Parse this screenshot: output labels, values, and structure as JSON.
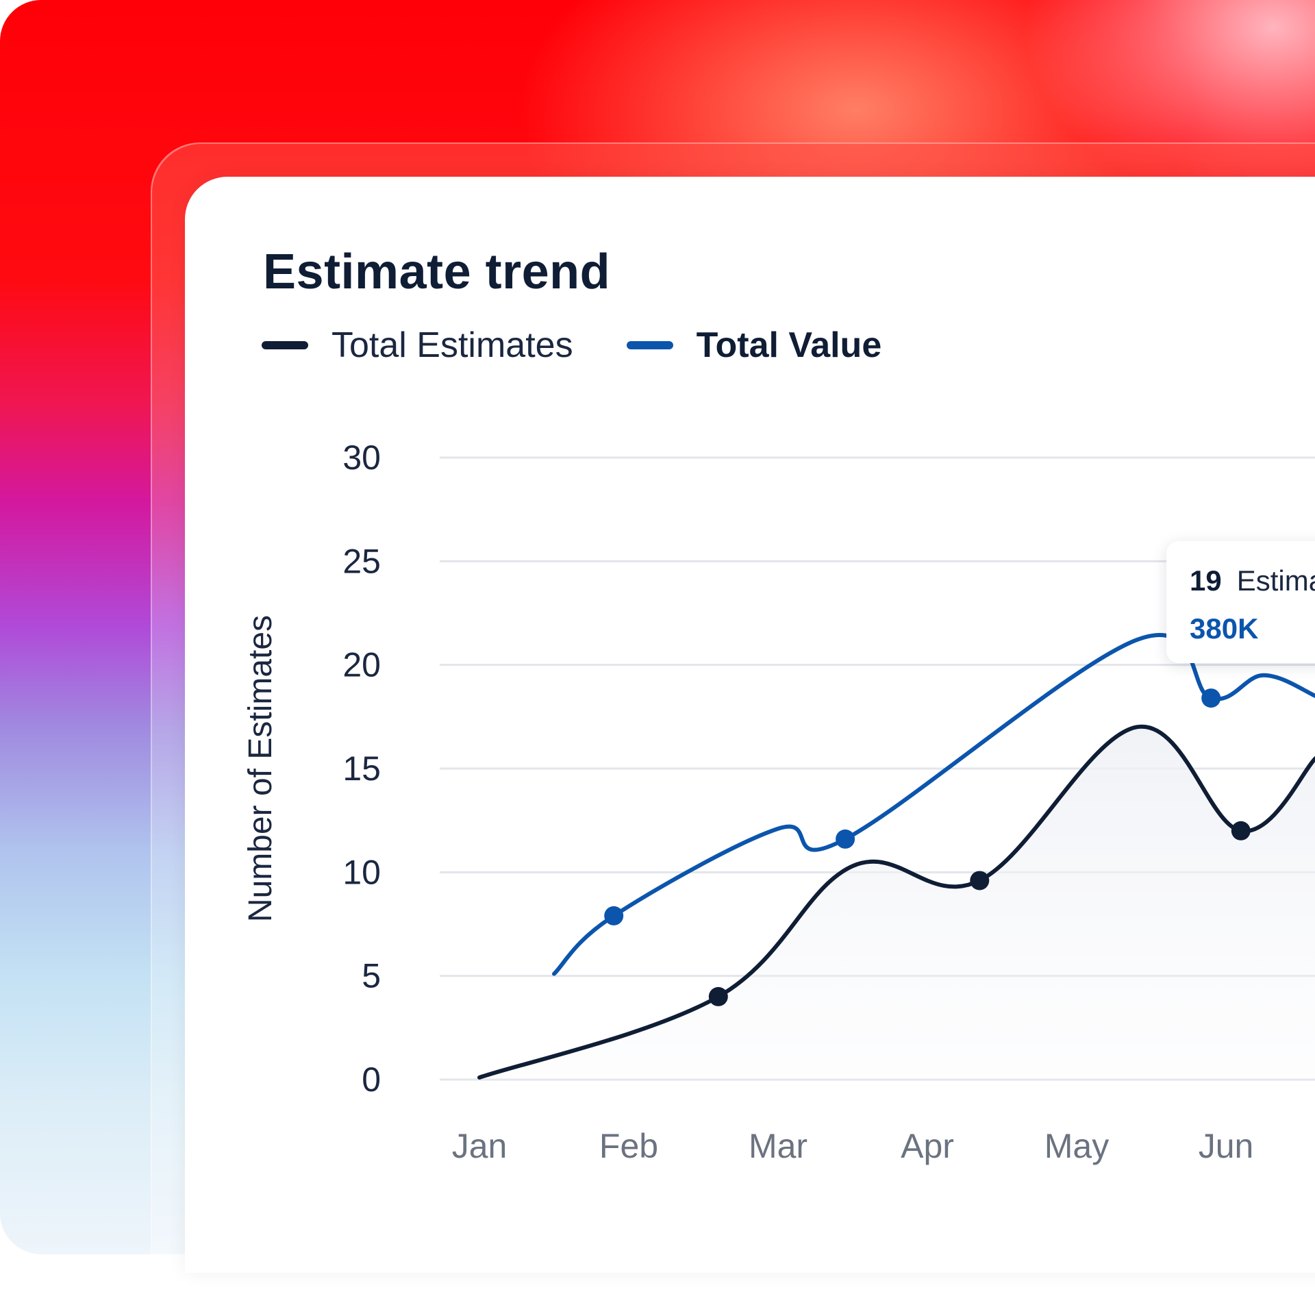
{
  "colors": {
    "estimates": "#0f1d35",
    "value": "#0b55ad",
    "grid": "#e3e5ea",
    "tick": "#1b2740",
    "xtick": "#6b7280",
    "axis_label": "#1b2740"
  },
  "chart_data": {
    "type": "line",
    "title": "Estimate trend",
    "xlabel": "",
    "ylabel": "Number of Estimates",
    "categories": [
      "Jan",
      "Feb",
      "Mar",
      "Apr",
      "May",
      "Jun"
    ],
    "yticks": [
      "30",
      "25",
      "20",
      "15",
      "10",
      "5",
      "0"
    ],
    "ylim": [
      0,
      30
    ],
    "grid": true,
    "legend": "top-left",
    "series": [
      {
        "name": "Total Estimates",
        "points": [
          {
            "x": 0.0,
            "y": 0.1
          },
          {
            "x": 1.6,
            "y": 4.0,
            "marker": true
          },
          {
            "x": 2.5,
            "y": 10.3
          },
          {
            "x": 3.35,
            "y": 9.6,
            "marker": true
          },
          {
            "x": 4.4,
            "y": 17.0
          },
          {
            "x": 5.1,
            "y": 12.0,
            "marker": true
          },
          {
            "x": 5.6,
            "y": 15.5
          }
        ]
      },
      {
        "name": "Total Value",
        "points": [
          {
            "x": 0.5,
            "y": 5.1
          },
          {
            "x": 0.9,
            "y": 7.9,
            "marker": true
          },
          {
            "x": 2.0,
            "y": 12.1
          },
          {
            "x": 2.45,
            "y": 11.6,
            "marker": true
          },
          {
            "x": 4.4,
            "y": 21.2
          },
          {
            "x": 4.9,
            "y": 18.4,
            "marker": true
          },
          {
            "x": 5.25,
            "y": 19.5
          },
          {
            "x": 5.6,
            "y": 18.5
          }
        ]
      }
    ],
    "tooltip": {
      "count": "19",
      "count_label": "Estimates",
      "value": "380K"
    }
  }
}
